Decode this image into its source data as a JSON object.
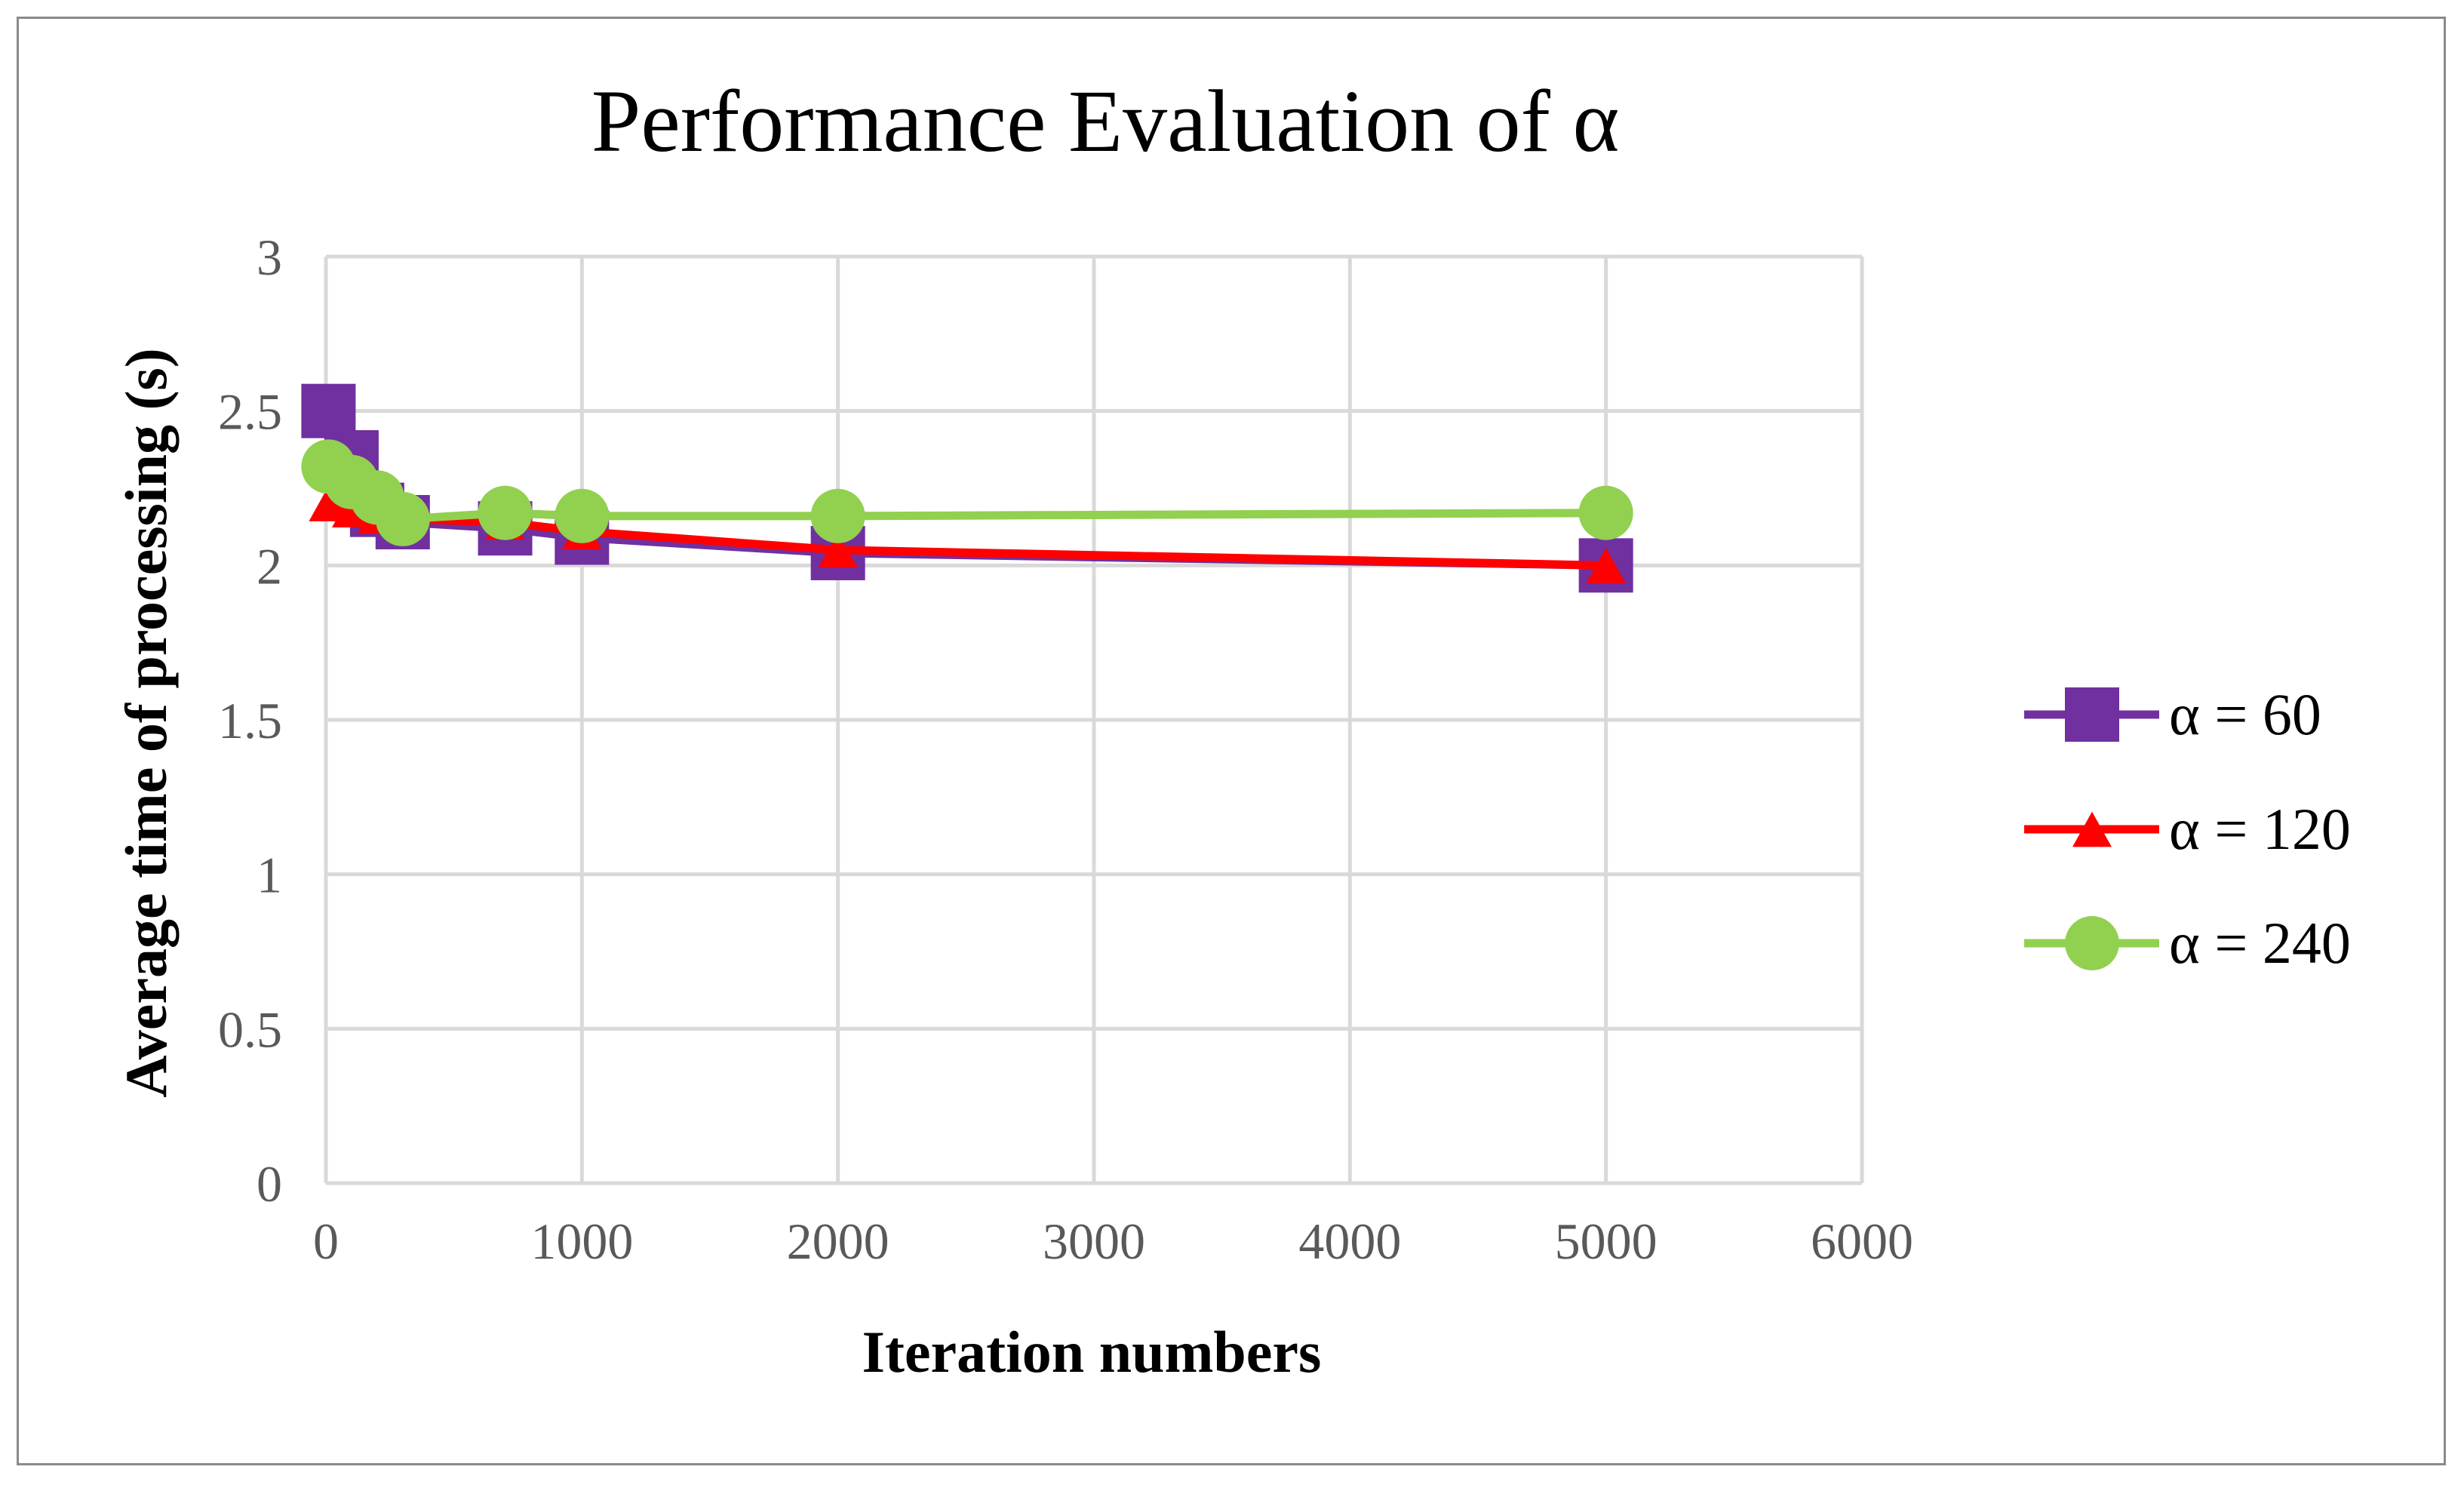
{
  "chart_data": {
    "type": "line",
    "title": "Performance Evaluation of α",
    "xlabel": "Iteration numbers",
    "ylabel": "Average time of processing (s)",
    "xlim": [
      0,
      6000
    ],
    "ylim": [
      0,
      3
    ],
    "xticks": [
      0,
      1000,
      2000,
      3000,
      4000,
      5000,
      6000
    ],
    "yticks": [
      0,
      0.5,
      1,
      1.5,
      2,
      2.5,
      3
    ],
    "xtick_labels": [
      "0",
      "1000",
      "2000",
      "3000",
      "4000",
      "5000",
      "6000"
    ],
    "ytick_labels": [
      "0",
      "0.5",
      "1",
      "1.5",
      "2",
      "2.5",
      "3"
    ],
    "grid": true,
    "legend_position": "right",
    "series": [
      {
        "name": "α = 60",
        "color": "#7030A0",
        "marker": "square",
        "x": [
          10,
          100,
          200,
          300,
          700,
          1000,
          2000,
          5000
        ],
        "y": [
          2.5,
          2.35,
          2.18,
          2.14,
          2.12,
          2.09,
          2.04,
          2.0
        ]
      },
      {
        "name": "α = 120",
        "color": "#FF0000",
        "marker": "triangle",
        "x": [
          10,
          100,
          200,
          300,
          700,
          1000,
          2000,
          5000
        ],
        "y": [
          2.2,
          2.18,
          2.16,
          2.15,
          2.14,
          2.11,
          2.05,
          2.0
        ]
      },
      {
        "name": "α = 240",
        "color": "#92D050",
        "marker": "circle",
        "x": [
          10,
          100,
          200,
          300,
          700,
          1000,
          2000,
          5000
        ],
        "y": [
          2.32,
          2.27,
          2.22,
          2.15,
          2.17,
          2.16,
          2.16,
          2.17
        ]
      }
    ]
  }
}
